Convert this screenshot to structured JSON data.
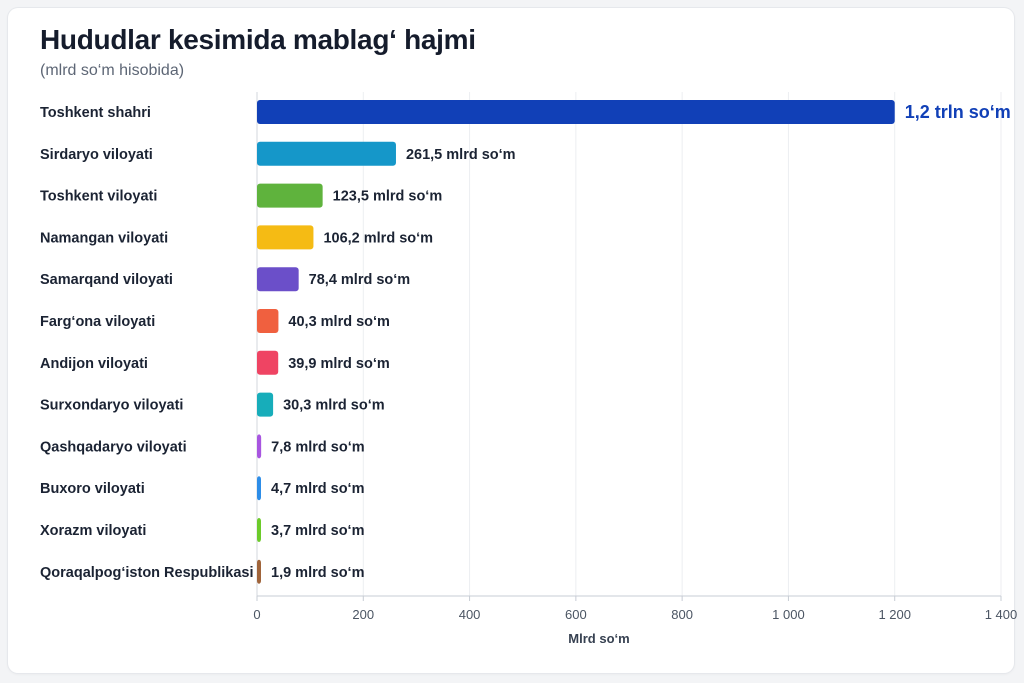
{
  "header": {
    "title": "Hududlar kesimida mablag‘ hajmi",
    "subtitle": "(mlrd so‘m hisobida)"
  },
  "chart_data": {
    "type": "bar",
    "orientation": "horizontal",
    "title": "Hududlar kesimida mablag‘ hajmi",
    "subtitle": "(mlrd so‘m hisobida)",
    "xlabel": "Mlrd so‘m",
    "ylabel": "",
    "xlim": [
      0,
      1400
    ],
    "xticks": [
      0,
      200,
      400,
      600,
      800,
      1000,
      1200,
      1400
    ],
    "xtick_labels": [
      "0",
      "200",
      "400",
      "600",
      "800",
      "1 000",
      "1 200",
      "1 400"
    ],
    "grid": true,
    "categories": [
      "Toshkent shahri",
      "Sirdaryo viloyati",
      "Toshkent viloyati",
      "Namangan viloyati",
      "Samarqand viloyati",
      "Farg‘ona viloyati",
      "Andijon viloyati",
      "Surxondaryo viloyati",
      "Qashqadaryo viloyati",
      "Buxoro viloyati",
      "Xorazm viloyati",
      "Qoraqalpog‘iston Respublikasi"
    ],
    "values": [
      1200,
      261.5,
      123.5,
      106.2,
      78.4,
      40.3,
      39.9,
      30.3,
      7.8,
      4.7,
      3.7,
      1.9
    ],
    "data_labels": [
      "1,2 trln so‘m",
      "261,5 mlrd so‘m",
      "123,5 mlrd so‘m",
      "106,2 mlrd so‘m",
      "78,4 mlrd so‘m",
      "40,3 mlrd so‘m",
      "39,9 mlrd so‘m",
      "30,3 mlrd so‘m",
      "7,8 mlrd so‘m",
      "4,7 mlrd so‘m",
      "3,7 mlrd so‘m",
      "1,9 mlrd so‘m"
    ],
    "colors": [
      "#1140b7",
      "#1597c9",
      "#5fb33d",
      "#f5bb14",
      "#6b4fc9",
      "#f0603f",
      "#ef4463",
      "#17adba",
      "#a855e0",
      "#2d8de8",
      "#6ccb2a",
      "#a0643a"
    ],
    "highlight_label_color": "#1140b7"
  }
}
